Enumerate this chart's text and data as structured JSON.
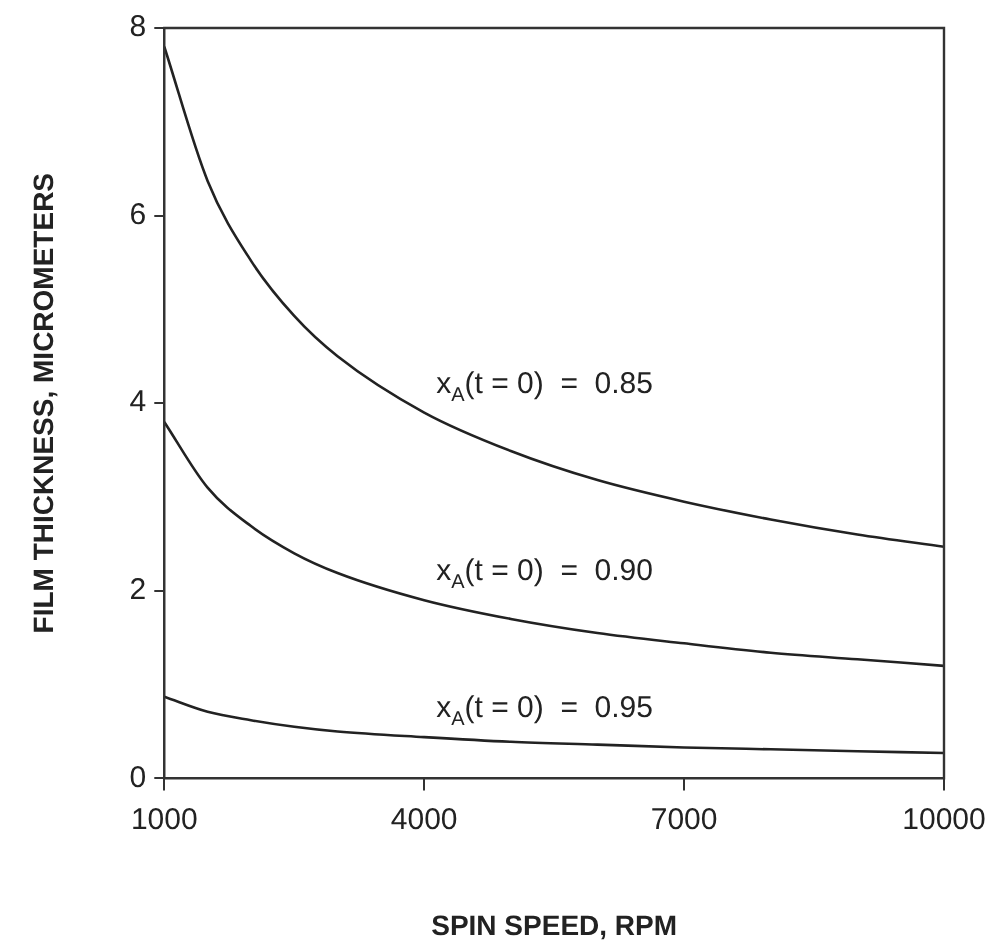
{
  "chart_data": {
    "type": "line",
    "xlabel": "SPIN SPEED, RPM",
    "ylabel": "FILM THICKNESS, MICROMETERS",
    "x": [
      1000,
      1500,
      2000,
      2500,
      3000,
      4000,
      5000,
      6000,
      7000,
      8000,
      9000,
      10000
    ],
    "series": [
      {
        "name": "x$_{A}$(t = 0)  =  0.85",
        "color": "#222222",
        "values": [
          7.8,
          6.37,
          5.52,
          4.93,
          4.5,
          3.9,
          3.49,
          3.18,
          2.95,
          2.76,
          2.6,
          2.47
        ]
      },
      {
        "name": "x$_{A}$(t = 0)  =  0.90",
        "color": "#222222",
        "values": [
          3.8,
          3.1,
          2.69,
          2.4,
          2.19,
          1.9,
          1.7,
          1.55,
          1.44,
          1.34,
          1.27,
          1.2
        ]
      },
      {
        "name": "x$_{A}$(t = 0)  =  0.95",
        "color": "#222222",
        "values": [
          0.87,
          0.71,
          0.62,
          0.55,
          0.5,
          0.44,
          0.39,
          0.36,
          0.33,
          0.31,
          0.29,
          0.27
        ]
      }
    ],
    "xlim": [
      1000,
      10000
    ],
    "xticks": [
      1000,
      4000,
      7000,
      10000
    ],
    "ylim": [
      0,
      8
    ],
    "yticks": [
      0,
      2,
      4,
      6,
      8
    ],
    "grid": false,
    "legend": false,
    "marker": "none",
    "line_style": "solid"
  }
}
